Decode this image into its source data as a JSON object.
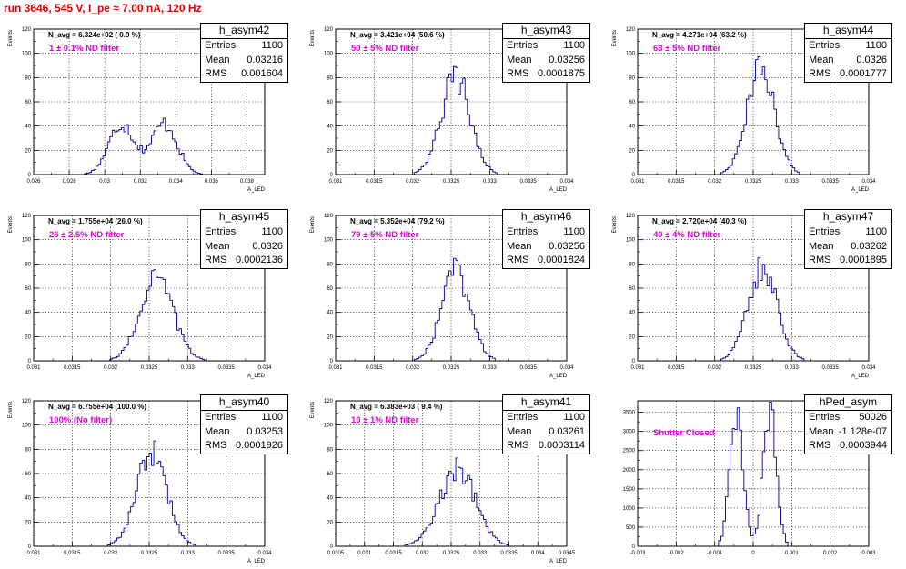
{
  "run_title": "run 3646,   545 V, I_pe ≈ 7.00 nA, 120 Hz",
  "stats_labels": {
    "entries": "Entries",
    "mean": "Mean",
    "rms": "RMS"
  },
  "chart_data": [
    {
      "type": "bar",
      "title": "h_asym42",
      "ylabel": "Events",
      "xlabel": "A_LED",
      "xlim": [
        0.026,
        0.039
      ],
      "ylim": [
        0,
        120
      ],
      "xticks": [
        "0.026",
        "0.028",
        "0.03",
        "0.032",
        "0.034",
        "0.036",
        "0.038"
      ],
      "yticks": [
        "0",
        "20",
        "40",
        "60",
        "80",
        "100",
        "120"
      ],
      "grid": true,
      "legend": "top-right",
      "stats": {
        "entries": "1100",
        "mean": "0.03216",
        "rms": "0.001604"
      },
      "n_avg": "N_avg = 6.324e+02 ( 0.9 %)",
      "filter": "1 ± 0.1% ND filter",
      "mean": 0.03216,
      "rms": 0.001604,
      "shape": "double",
      "peak": 42
    },
    {
      "type": "bar",
      "title": "h_asym43",
      "ylabel": "Events",
      "xlabel": "A_LED",
      "xlim": [
        0.031,
        0.034
      ],
      "ylim": [
        0,
        120
      ],
      "xticks": [
        "0.031",
        "0.0315",
        "0.032",
        "0.0325",
        "0.033",
        "0.0335",
        "0.034"
      ],
      "yticks": [
        "0",
        "20",
        "40",
        "60",
        "80",
        "100",
        "120"
      ],
      "grid": true,
      "legend": "top-right",
      "stats": {
        "entries": "1100",
        "mean": "0.03256",
        "rms": "0.0001875"
      },
      "n_avg": "N_avg = 3.421e+04 (50.6 %)",
      "filter": "50 ± 5% ND filter",
      "mean": 0.03256,
      "rms": 0.0001875,
      "shape": "single",
      "peak": 81
    },
    {
      "type": "bar",
      "title": "h_asym44",
      "ylabel": "Events",
      "xlabel": "A_LED",
      "xlim": [
        0.031,
        0.034
      ],
      "ylim": [
        0,
        120
      ],
      "xticks": [
        "0.031",
        "0.0315",
        "0.032",
        "0.0325",
        "0.033",
        "0.0335",
        "0.034"
      ],
      "yticks": [
        "0",
        "20",
        "40",
        "60",
        "80",
        "100",
        "120"
      ],
      "grid": true,
      "legend": "top-right",
      "stats": {
        "entries": "1100",
        "mean": "0.0326",
        "rms": "0.0001777"
      },
      "n_avg": "N_avg = 4.271e+04 (63.2 %)",
      "filter": "63 ± 5% ND filter",
      "mean": 0.0326,
      "rms": 0.0001777,
      "shape": "single",
      "peak": 89
    },
    {
      "type": "bar",
      "title": "h_asym45",
      "ylabel": "Events",
      "xlabel": "A_LED",
      "xlim": [
        0.031,
        0.034
      ],
      "ylim": [
        0,
        120
      ],
      "xticks": [
        "0.031",
        "0.0315",
        "0.032",
        "0.0325",
        "0.033",
        "0.0335",
        "0.034"
      ],
      "yticks": [
        "0",
        "20",
        "40",
        "60",
        "80",
        "100",
        "120"
      ],
      "grid": true,
      "legend": "top-right",
      "stats": {
        "entries": "1100",
        "mean": "0.0326",
        "rms": "0.0002136"
      },
      "n_avg": "N_avg = 1.755e+04 (26.0 %)",
      "filter": "25 ± 2.5% ND filter",
      "mean": 0.0326,
      "rms": 0.0002136,
      "shape": "single",
      "peak": 68
    },
    {
      "type": "bar",
      "title": "h_asym46",
      "ylabel": "Events",
      "xlabel": "A_LED",
      "xlim": [
        0.031,
        0.034
      ],
      "ylim": [
        0,
        120
      ],
      "xticks": [
        "0.031",
        "0.0315",
        "0.032",
        "0.0325",
        "0.033",
        "0.0335",
        "0.034"
      ],
      "yticks": [
        "0",
        "20",
        "40",
        "60",
        "80",
        "100",
        "120"
      ],
      "grid": true,
      "legend": "top-right",
      "stats": {
        "entries": "1100",
        "mean": "0.03256",
        "rms": "0.0001824"
      },
      "n_avg": "N_avg = 5.352e+04 (79.2 %)",
      "filter": "79 ± 5% ND filter",
      "mean": 0.03256,
      "rms": 0.0001824,
      "shape": "single",
      "peak": 74
    },
    {
      "type": "bar",
      "title": "h_asym47",
      "ylabel": "Events",
      "xlabel": "A_LED",
      "xlim": [
        0.031,
        0.034
      ],
      "ylim": [
        0,
        120
      ],
      "xticks": [
        "0.031",
        "0.0315",
        "0.032",
        "0.0325",
        "0.033",
        "0.0335",
        "0.034"
      ],
      "yticks": [
        "0",
        "20",
        "40",
        "60",
        "80",
        "100",
        "120"
      ],
      "grid": true,
      "legend": "top-right",
      "stats": {
        "entries": "1100",
        "mean": "0.03262",
        "rms": "0.0001895"
      },
      "n_avg": "N_avg = 2.720e+04 (40.3 %)",
      "filter": "40 ± 4% ND filter",
      "mean": 0.03262,
      "rms": 0.0001895,
      "shape": "single",
      "peak": 77
    },
    {
      "type": "bar",
      "title": "h_asym40",
      "ylabel": "Events",
      "xlabel": "A_LED",
      "xlim": [
        0.031,
        0.034
      ],
      "ylim": [
        0,
        120
      ],
      "xticks": [
        "0.031",
        "0.0315",
        "0.032",
        "0.0325",
        "0.033",
        "0.0335",
        "0.034"
      ],
      "yticks": [
        "0",
        "20",
        "40",
        "60",
        "80",
        "100",
        "120"
      ],
      "grid": true,
      "legend": "top-right",
      "stats": {
        "entries": "1100",
        "mean": "0.03253",
        "rms": "0.0001926"
      },
      "n_avg": "N_avg = 6.755e+04 (100.0 %)",
      "filter": "100% (No filter)",
      "mean": 0.03253,
      "rms": 0.0001926,
      "shape": "single",
      "peak": 78
    },
    {
      "type": "bar",
      "title": "h_asym41",
      "ylabel": "Events",
      "xlabel": "A_LED",
      "xlim": [
        0.0305,
        0.0345
      ],
      "ylim": [
        0,
        120
      ],
      "xticks": [
        "0.0305",
        "0.031",
        "0.0315",
        "0.032",
        "0.0325",
        "0.033",
        "0.0335",
        "0.034",
        "0.0345"
      ],
      "yticks": [
        "0",
        "20",
        "40",
        "60",
        "80",
        "100",
        "120"
      ],
      "grid": true,
      "legend": "top-right",
      "stats": {
        "entries": "1100",
        "mean": "0.03261",
        "rms": "0.0003114"
      },
      "n_avg": "N_avg = 6.383e+03 ( 9.4 %)",
      "filter": "10 ± 1% ND filter",
      "mean": 0.03261,
      "rms": 0.0003114,
      "shape": "single",
      "peak": 63
    },
    {
      "type": "bar",
      "title": "hPed_asym",
      "ylabel": "",
      "xlabel": "",
      "xlim": [
        -0.003,
        0.003
      ],
      "ylim": [
        0,
        3800
      ],
      "xticks": [
        "-0.003",
        "-0.002",
        "-0.001",
        "0",
        "0.001",
        "0.002",
        "0.003"
      ],
      "yticks": [
        "0",
        "500",
        "1000",
        "1500",
        "2000",
        "2500",
        "3000",
        "3500"
      ],
      "grid": true,
      "legend": "top-right",
      "stats": {
        "entries": "50026",
        "mean": "-1.128e-07",
        "rms": "0.0003944"
      },
      "n_avg": "",
      "filter": "Shutter Closed",
      "mean": 0,
      "rms": 0.0003944,
      "shape": "ped",
      "peak": 3650
    }
  ]
}
